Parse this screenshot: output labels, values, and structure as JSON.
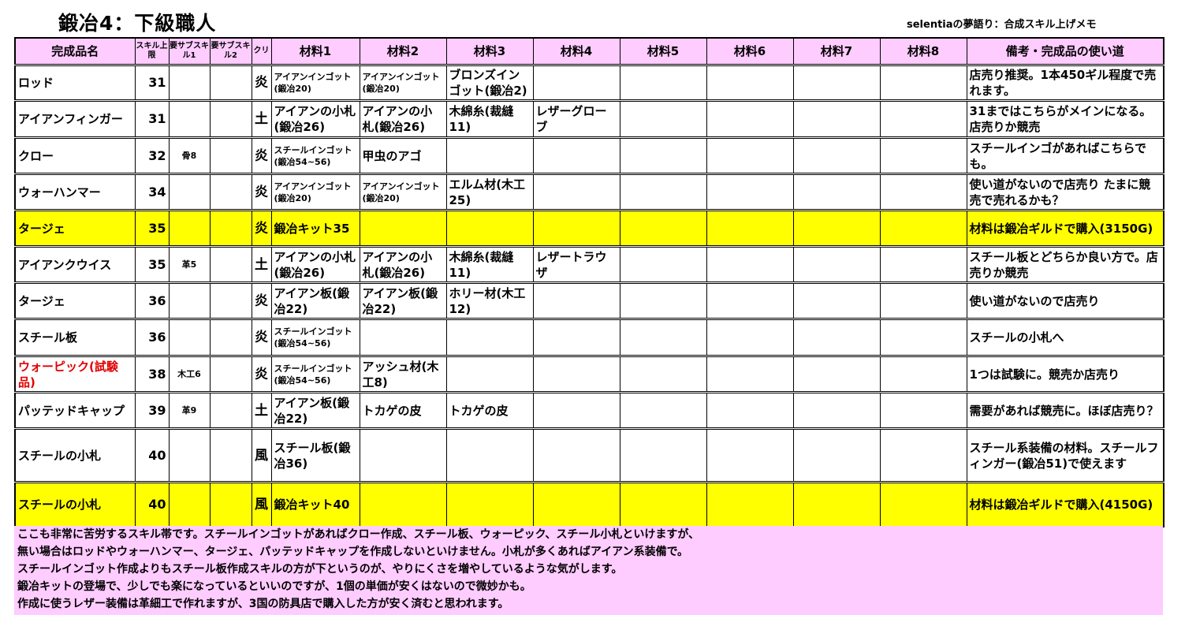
{
  "title": "鍛冶4：下級職人",
  "subtitle": "selentiaの夢語り：合成スキル上げメモ",
  "colors": {
    "header_bg": "#ffccff",
    "highlight_row": "#ffff00",
    "red_text": "#e00000",
    "footer_bg": "#ffccff"
  },
  "columns": [
    "完成品名",
    "スキル上限",
    "要サブスキル1",
    "要サブスキル2",
    "クリ",
    "材料1",
    "材料2",
    "材料3",
    "材料4",
    "材料5",
    "材料6",
    "材料7",
    "材料8",
    "備考・完成品の使い道"
  ],
  "rows": [
    {
      "name": "ロッド",
      "skill": "31",
      "sub1": "",
      "sub2": "",
      "crystal": "炎",
      "m": [
        "アイアンインゴット(鍛冶20)",
        "アイアンインゴット(鍛冶20)",
        "ブロンズインゴット(鍛冶2)",
        "",
        "",
        "",
        "",
        ""
      ],
      "small": [
        true,
        true,
        false
      ],
      "note": "店売り推奨。1本450ギル程度で売れます。",
      "highlight": false,
      "red": false
    },
    {
      "name": "アイアンフィンガー",
      "skill": "31",
      "sub1": "",
      "sub2": "",
      "crystal": "土",
      "m": [
        "アイアンの小札(鍛冶26)",
        "アイアンの小札(鍛冶26)",
        "木綿糸(裁縫11)",
        "レザーグローブ",
        "",
        "",
        "",
        ""
      ],
      "small": [
        false,
        false,
        false
      ],
      "note": "31まではこちらがメインになる。店売りか競売",
      "highlight": false,
      "red": false
    },
    {
      "name": "クロー",
      "skill": "32",
      "sub1": "骨8",
      "sub2": "",
      "crystal": "炎",
      "m": [
        "スチールインゴット(鍛冶54~56)",
        "甲虫のアゴ",
        "",
        "",
        "",
        "",
        "",
        ""
      ],
      "small": [
        true,
        false,
        false
      ],
      "note": "スチールインゴがあればこちらでも。",
      "highlight": false,
      "red": false
    },
    {
      "name": "ウォーハンマー",
      "skill": "34",
      "sub1": "",
      "sub2": "",
      "crystal": "炎",
      "m": [
        "アイアンインゴット(鍛冶20)",
        "アイアンインゴット(鍛冶20)",
        "エルム材(木工25)",
        "",
        "",
        "",
        "",
        ""
      ],
      "small": [
        true,
        true,
        false
      ],
      "note": "使い道がないので店売り たまに競売で売れるかも？",
      "highlight": false,
      "red": false
    },
    {
      "name": "タージェ",
      "skill": "35",
      "sub1": "",
      "sub2": "",
      "crystal": "炎",
      "m": [
        "鍛冶キット35",
        "",
        "",
        "",
        "",
        "",
        "",
        ""
      ],
      "small": [
        false,
        false,
        false
      ],
      "note": "材料は鍛冶ギルドで購入(3150G)",
      "highlight": true,
      "red": false
    },
    {
      "name": "アイアンクウイス",
      "skill": "35",
      "sub1": "革5",
      "sub2": "",
      "crystal": "土",
      "m": [
        "アイアンの小札(鍛冶26)",
        "アイアンの小札(鍛冶26)",
        "木綿糸(裁縫11)",
        "レザートラウザ",
        "",
        "",
        "",
        ""
      ],
      "small": [
        false,
        false,
        false
      ],
      "note": "スチール板とどちらか良い方で。店売りか競売",
      "highlight": false,
      "red": false
    },
    {
      "name": "タージェ",
      "skill": "36",
      "sub1": "",
      "sub2": "",
      "crystal": "炎",
      "m": [
        "アイアン板(鍛冶22)",
        "アイアン板(鍛冶22)",
        "ホリー材(木工12)",
        "",
        "",
        "",
        "",
        ""
      ],
      "small": [
        false,
        false,
        false
      ],
      "note": "使い道がないので店売り",
      "highlight": false,
      "red": false
    },
    {
      "name": "スチール板",
      "skill": "36",
      "sub1": "",
      "sub2": "",
      "crystal": "炎",
      "m": [
        "スチールインゴット(鍛冶54~56)",
        "",
        "",
        "",
        "",
        "",
        "",
        ""
      ],
      "small": [
        true,
        false,
        false
      ],
      "note": "スチールの小札へ",
      "highlight": false,
      "red": false
    },
    {
      "name": "ウォーピック(試験品)",
      "skill": "38",
      "sub1": "木工6",
      "sub2": "",
      "crystal": "炎",
      "m": [
        "スチールインゴット(鍛冶54~56)",
        "アッシュ材(木工8)",
        "",
        "",
        "",
        "",
        "",
        ""
      ],
      "small": [
        true,
        false,
        false
      ],
      "note": "1つは試験に。競売か店売り",
      "highlight": false,
      "red": true
    },
    {
      "name": "パッテッドキャップ",
      "skill": "39",
      "sub1": "革9",
      "sub2": "",
      "crystal": "土",
      "m": [
        "アイアン板(鍛冶22)",
        "トカゲの皮",
        "トカゲの皮",
        "",
        "",
        "",
        "",
        ""
      ],
      "small": [
        false,
        false,
        false
      ],
      "note": "需要があれば競売に。ほぼ店売り？",
      "highlight": false,
      "red": false
    },
    {
      "name": "スチールの小札",
      "skill": "40",
      "sub1": "",
      "sub2": "",
      "crystal": "風",
      "m": [
        "スチール板(鍛冶36)",
        "",
        "",
        "",
        "",
        "",
        "",
        ""
      ],
      "small": [
        false,
        false,
        false
      ],
      "note": "スチール系装備の材料。スチールフィンガー(鍛冶51)で使えます",
      "highlight": false,
      "red": false
    },
    {
      "name": "スチールの小札",
      "skill": "40",
      "sub1": "",
      "sub2": "",
      "crystal": "風",
      "m": [
        "鍛冶キット40",
        "",
        "",
        "",
        "",
        "",
        "",
        ""
      ],
      "small": [
        false,
        false,
        false
      ],
      "note": "材料は鍛冶ギルドで購入(4150G)",
      "highlight": true,
      "red": false
    }
  ],
  "footer": [
    "ここも非常に苦労するスキル帯です。スチールインゴットがあればクロー作成、スチール板、ウォーピック、スチール小札といけますが、",
    "無い場合はロッドやウォーハンマー、タージェ、パッテッドキャップを作成しないといけません。小札が多くあればアイアン系装備で。",
    "スチールインゴット作成よりもスチール板作成スキルの方が下というのが、やりにくさを増やしているような気がします。",
    "鍛冶キットの登場で、少しでも楽になっているといいのですが、1個の単価が安くはないので微妙かも。",
    "作成に使うレザー装備は革細工で作れますが、3国の防具店で購入した方が安く済むと思われます。"
  ]
}
